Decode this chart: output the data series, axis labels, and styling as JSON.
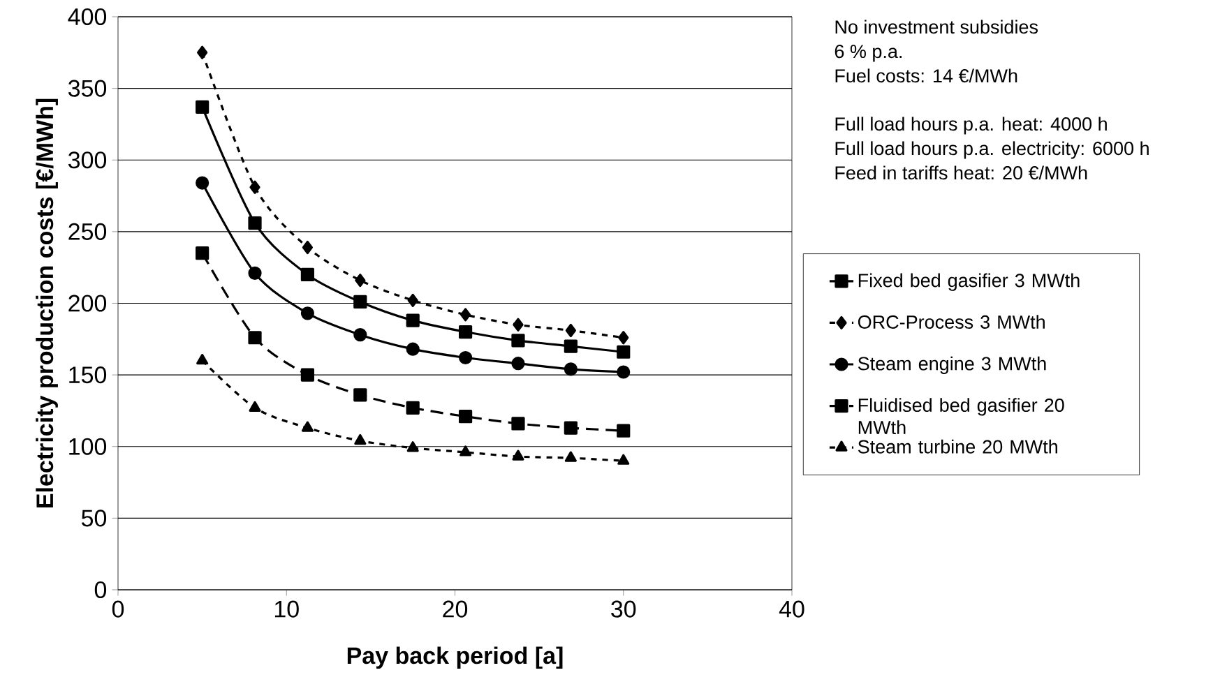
{
  "chart_data": {
    "type": "line",
    "xlabel": "Pay back period [a]",
    "ylabel": "Electricity production costs [€/MWh]",
    "annotations": [
      "No investment subsidies",
      "6 % p.a.",
      "Fuel costs: 14 €/MWh",
      "Full load hours p.a. heat: 4000 h",
      "Full load hours p.a. electricity: 6000 h",
      "Feed in tariffs heat: 20 €/MWh"
    ],
    "x": [
      5,
      8.125,
      11.25,
      14.375,
      17.5,
      20.625,
      23.75,
      26.875,
      30
    ],
    "series": [
      {
        "name": "Fixed bed gasifier 3 MWth",
        "color": "#000000",
        "marker": "square",
        "line_style": "solid",
        "values": [
          337,
          256,
          220,
          201,
          188,
          180,
          174,
          170,
          166
        ]
      },
      {
        "name": "ORC-Process 3 MWth",
        "color": "#000000",
        "marker": "diamond",
        "line_style": "dotted",
        "values": [
          375,
          281,
          239,
          216,
          202,
          192,
          185,
          181,
          176
        ]
      },
      {
        "name": "Steam engine 3 MWth",
        "color": "#000000",
        "marker": "circle",
        "line_style": "solid",
        "values": [
          284,
          221,
          193,
          178,
          168,
          162,
          158,
          154,
          152
        ]
      },
      {
        "name": "Fluidised bed gasifier 20 MWth",
        "color": "#000000",
        "marker": "square",
        "line_style": "dashed",
        "values": [
          235,
          176,
          150,
          136,
          127,
          121,
          116,
          113,
          111
        ]
      },
      {
        "name": "Steam turbine 20 MWth",
        "color": "#000000",
        "marker": "triangle",
        "line_style": "dotted",
        "values": [
          160,
          127,
          113,
          104,
          99,
          96,
          93,
          92,
          90
        ]
      }
    ],
    "xlim": [
      0,
      40
    ],
    "ylim": [
      0,
      400
    ],
    "xticks": [
      0,
      10,
      20,
      30,
      40
    ],
    "yticks": [
      0,
      50,
      100,
      150,
      200,
      250,
      300,
      350,
      400
    ],
    "grid": "y",
    "legend": "right"
  }
}
